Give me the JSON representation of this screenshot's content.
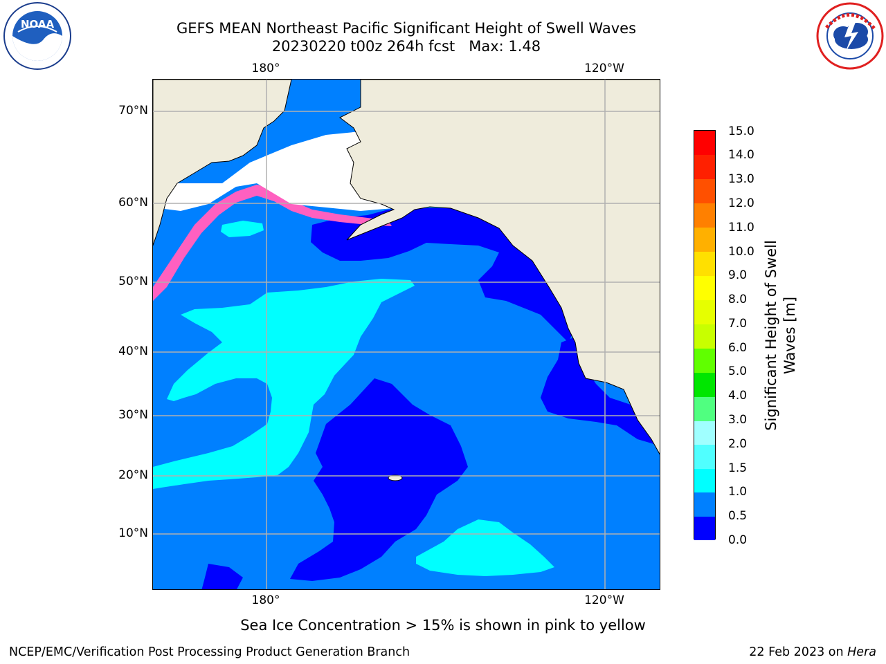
{
  "header": {
    "title_line1": "GEFS MEAN Northeast Pacific Significant Height of Swell Waves",
    "title_line2": "20230220 t00z 264h fcst   Max: 1.48"
  },
  "logos": {
    "noaa": {
      "text": "NOAA",
      "ring_text": "NATIONAL OCEANIC AND ATMOSPHERIC ADMINISTRATION · U.S. DEPARTMENT OF COMMERCE"
    },
    "nws": {
      "ring_text": "NATIONAL WEATHER SERVICE"
    }
  },
  "map": {
    "lon_labels_top": [
      "180°",
      "120°W"
    ],
    "lon_labels_bottom": [
      "180°",
      "120°W"
    ],
    "lat_labels": [
      "70°N",
      "60°N",
      "50°N",
      "40°N",
      "30°N",
      "20°N",
      "10°N"
    ],
    "colors": {
      "land": "#efecdc",
      "ice_white": "#ffffff",
      "ocean_default": "#0080ff"
    }
  },
  "colorbar": {
    "label_line1": "Significant Height of Swell",
    "label_line2": "Waves [m]",
    "ticks": [
      "15.0",
      "14.0",
      "13.0",
      "12.0",
      "11.0",
      "10.0",
      "9.0",
      "8.0",
      "7.0",
      "6.0",
      "5.0",
      "4.0",
      "3.0",
      "2.0",
      "1.5",
      "1.0",
      "0.5",
      "0.0"
    ],
    "levels": [
      0.0,
      0.5,
      1.0,
      1.5,
      2.0,
      3.0,
      4.0,
      5.0,
      6.0,
      7.0,
      8.0,
      9.0,
      10.0,
      11.0,
      12.0,
      13.0,
      14.0,
      15.0
    ],
    "colors_bottom_to_top": [
      "#0000ff",
      "#0080ff",
      "#00ffff",
      "#50ffff",
      "#a0ffff",
      "#50ff80",
      "#00e600",
      "#60ff00",
      "#c8ff00",
      "#e6ff00",
      "#ffff00",
      "#ffe000",
      "#ffb000",
      "#ff8000",
      "#ff5000",
      "#ff2000",
      "#ff0000"
    ]
  },
  "caption": "Sea Ice Concentration > 15% is shown in pink to yellow",
  "footer": {
    "left": "NCEP/EMC/Verification Post Processing Product Generation Branch",
    "right_prefix": "22 Feb 2023 on ",
    "right_host": "Hera"
  }
}
